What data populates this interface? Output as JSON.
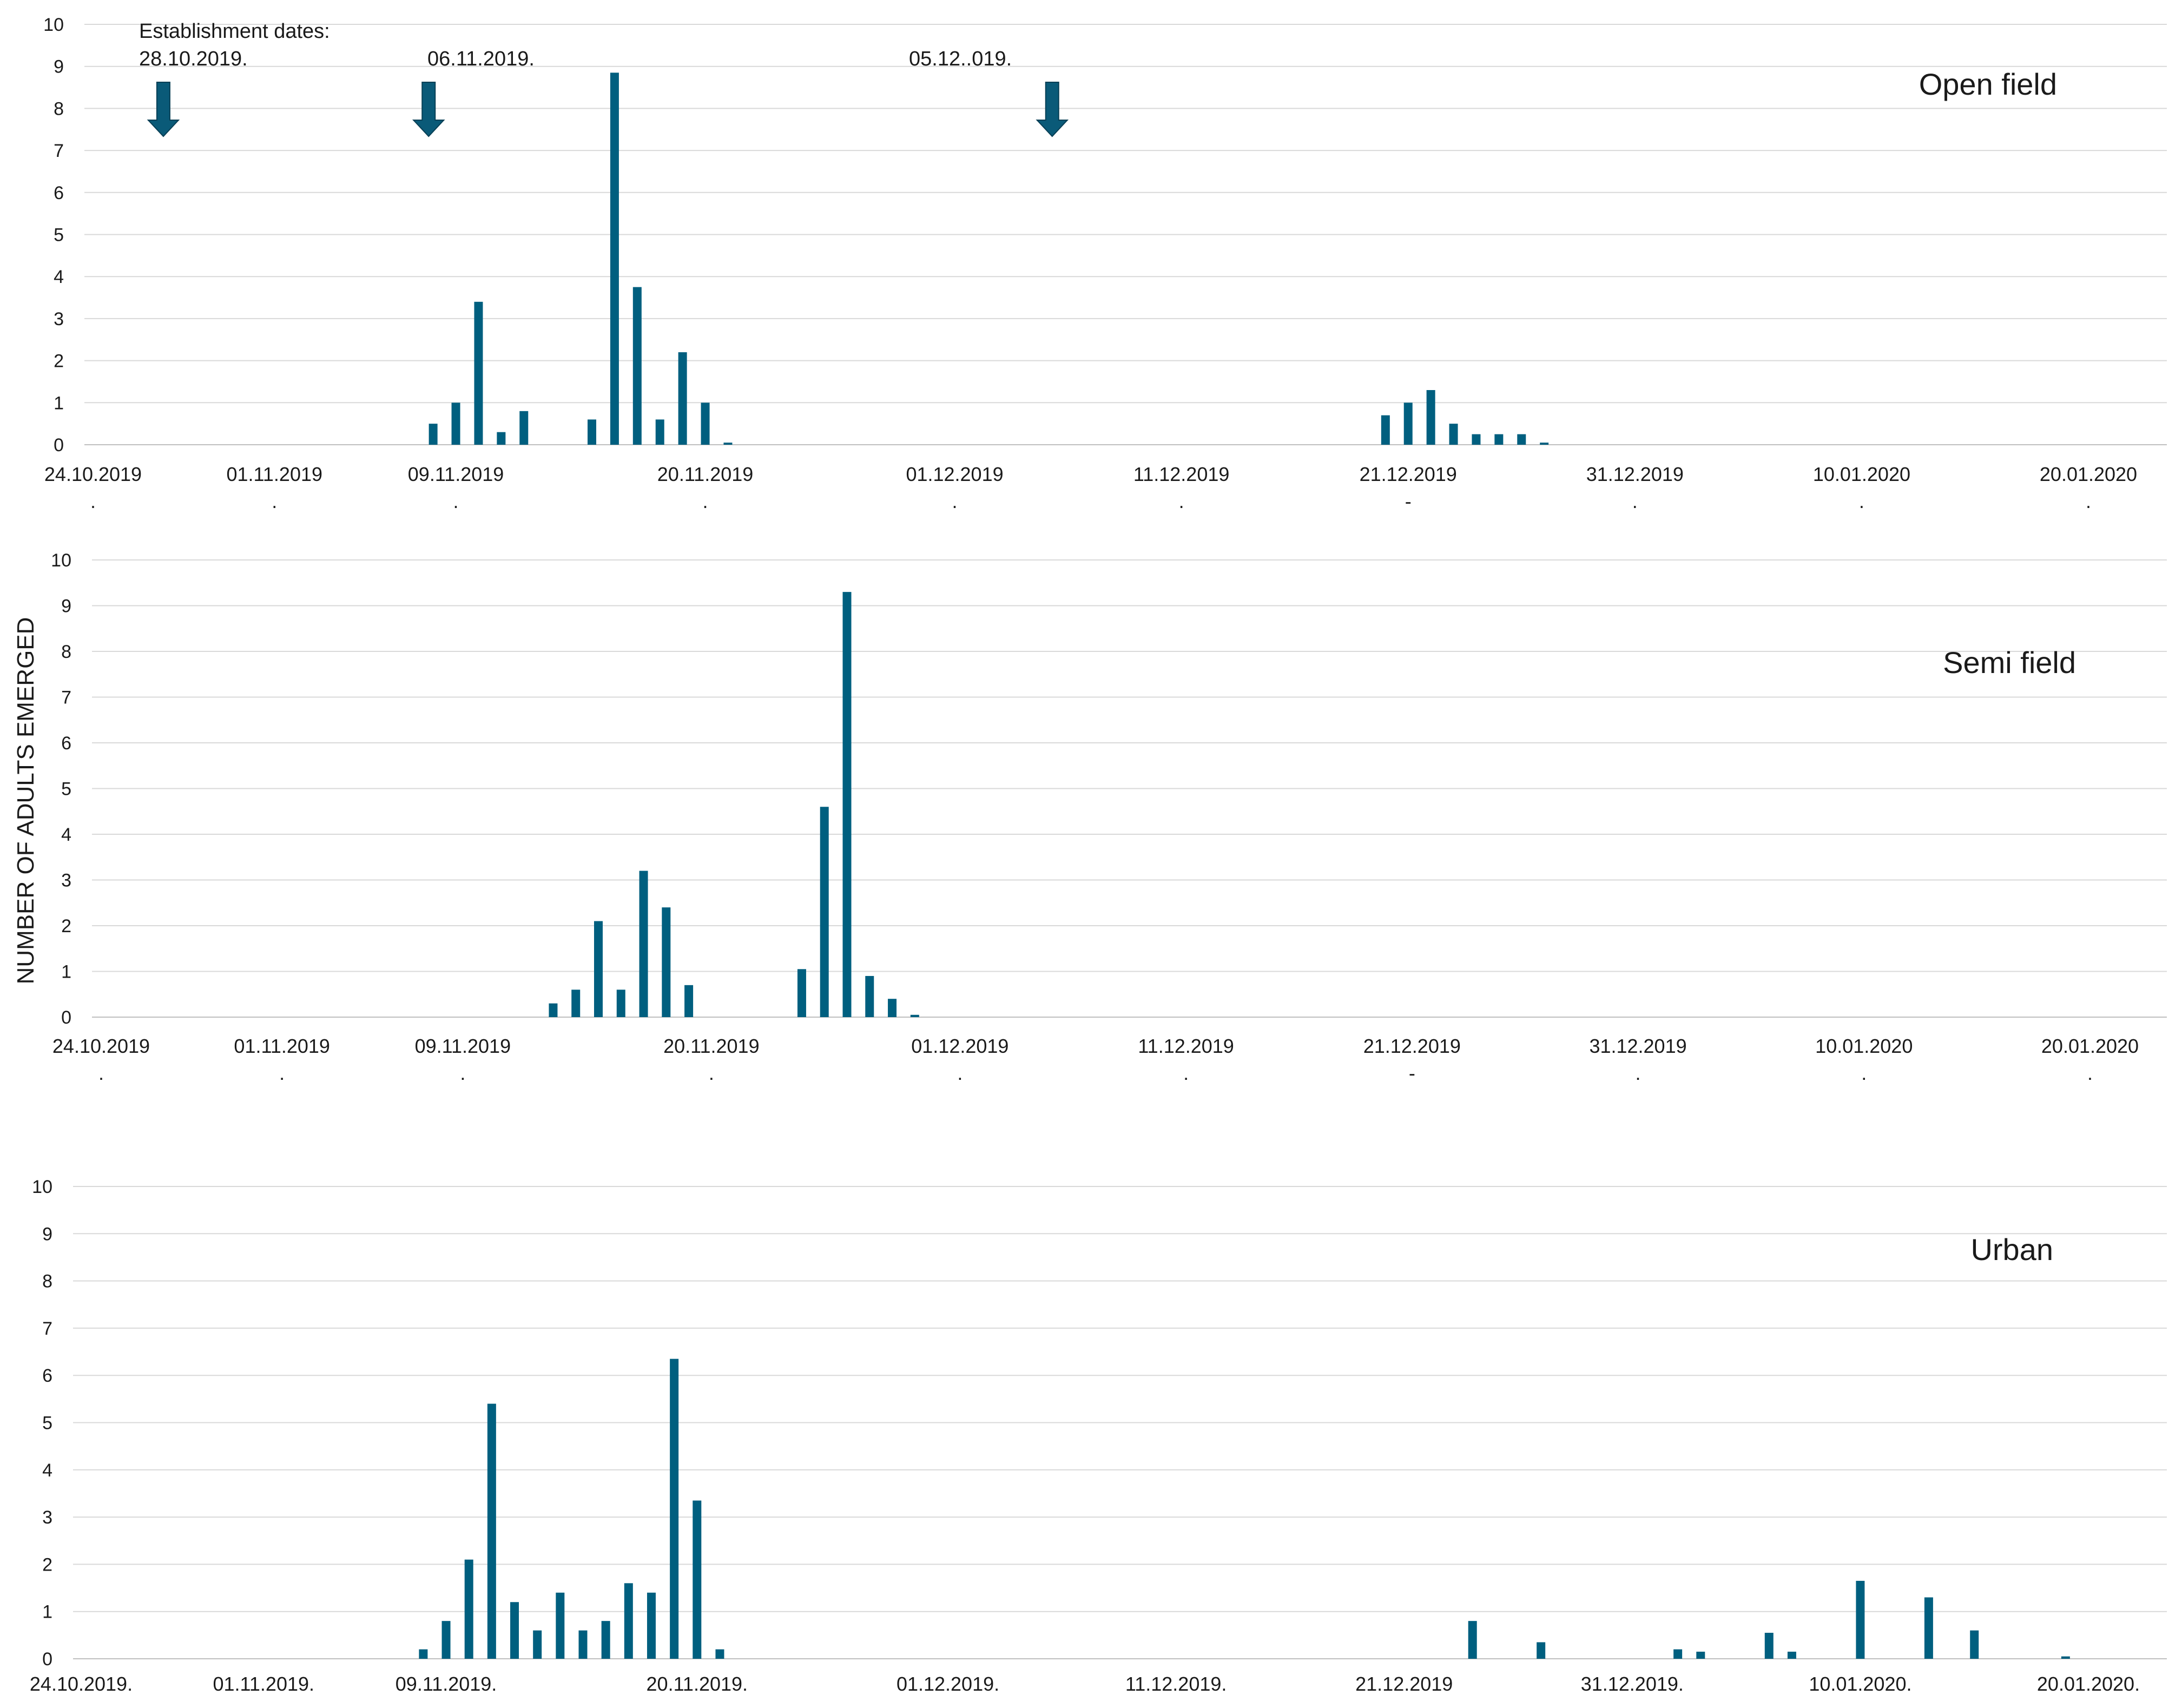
{
  "figure": {
    "ylabel": "NUMBER OF ADULTS EMERGED",
    "bar_color": "#005f7f",
    "arrow_color": "#0a5a78"
  },
  "chart_data": [
    {
      "type": "bar",
      "title": "Open field",
      "ylabel": "NUMBER OF ADULTS EMERGED",
      "ylim": [
        0,
        10
      ],
      "yticks": [
        "0",
        "1",
        "2",
        "3",
        "4",
        "5",
        "6",
        "7",
        "8",
        "9",
        "10"
      ],
      "x_start": "24.10.2019",
      "x_end": "20.01.2020",
      "xtick_labels": [
        "24.10.2019",
        "01.11.2019",
        "09.11.2019",
        "20.11.2019",
        "01.12.2019",
        "11.12.2019",
        "21.12.2019",
        "31.12.2019",
        "10.01.2020",
        "20.01.2020"
      ],
      "xtick_day_offsets": [
        0,
        8,
        16,
        27,
        38,
        48,
        58,
        68,
        78,
        88
      ],
      "xtick_marks": [
        ".",
        ".",
        ".",
        ".",
        ".",
        ".",
        "-",
        ".",
        ".",
        "."
      ],
      "annotations": {
        "header": "Establishment dates:",
        "dates": [
          "28.10.2019.",
          "06.11.2019.",
          "05.12..019."
        ],
        "arrow_day_offsets": [
          3.1,
          14.8,
          42.3
        ]
      },
      "bars": [
        {
          "day": 15,
          "value": 0.5
        },
        {
          "day": 16,
          "value": 1.0
        },
        {
          "day": 17,
          "value": 3.4
        },
        {
          "day": 18,
          "value": 0.3
        },
        {
          "day": 19,
          "value": 0.8
        },
        {
          "day": 22,
          "value": 0.6
        },
        {
          "day": 23,
          "value": 8.85
        },
        {
          "day": 24,
          "value": 3.75
        },
        {
          "day": 25,
          "value": 0.6
        },
        {
          "day": 26,
          "value": 2.2
        },
        {
          "day": 27,
          "value": 1.0
        },
        {
          "day": 28,
          "value": 0.05
        },
        {
          "day": 57,
          "value": 0.7
        },
        {
          "day": 58,
          "value": 1.0
        },
        {
          "day": 59,
          "value": 1.3
        },
        {
          "day": 60,
          "value": 0.5
        },
        {
          "day": 61,
          "value": 0.25
        },
        {
          "day": 62,
          "value": 0.25
        },
        {
          "day": 63,
          "value": 0.25
        },
        {
          "day": 64,
          "value": 0.05
        }
      ]
    },
    {
      "type": "bar",
      "title": "Semi field",
      "ylabel": "NUMBER OF ADULTS EMERGED",
      "ylim": [
        0,
        10
      ],
      "yticks": [
        "0",
        "1",
        "2",
        "3",
        "4",
        "5",
        "6",
        "7",
        "8",
        "9",
        "10"
      ],
      "x_start": "24.10.2019",
      "x_end": "20.01.2020",
      "xtick_labels": [
        "24.10.2019",
        "01.11.2019",
        "09.11.2019",
        "20.11.2019",
        "01.12.2019",
        "11.12.2019",
        "21.12.2019",
        "31.12.2019",
        "10.01.2020",
        "20.01.2020"
      ],
      "xtick_day_offsets": [
        0,
        8,
        16,
        27,
        38,
        48,
        58,
        68,
        78,
        88
      ],
      "xtick_marks": [
        ".",
        ".",
        ".",
        ".",
        ".",
        ".",
        "-",
        ".",
        ".",
        "."
      ],
      "bars": [
        {
          "day": 20,
          "value": 0.3
        },
        {
          "day": 21,
          "value": 0.6
        },
        {
          "day": 22,
          "value": 2.1
        },
        {
          "day": 23,
          "value": 0.6
        },
        {
          "day": 24,
          "value": 3.2
        },
        {
          "day": 25,
          "value": 2.4
        },
        {
          "day": 26,
          "value": 0.7
        },
        {
          "day": 31,
          "value": 1.05
        },
        {
          "day": 32,
          "value": 4.6
        },
        {
          "day": 33,
          "value": 9.3
        },
        {
          "day": 34,
          "value": 0.9
        },
        {
          "day": 35,
          "value": 0.4
        },
        {
          "day": 36,
          "value": 0.05
        }
      ]
    },
    {
      "type": "bar",
      "title": "Urban",
      "ylabel": "NUMBER OF ADULTS EMERGED",
      "ylim": [
        0,
        10
      ],
      "yticks": [
        "0",
        "1",
        "2",
        "3",
        "4",
        "5",
        "6",
        "7",
        "8",
        "9",
        "10"
      ],
      "x_start": "24.10.2019.",
      "x_end": "20.01.2020.",
      "xtick_labels": [
        "24.10.2019.",
        "01.11.2019.",
        "09.11.2019.",
        "20.11.2019.",
        "01.12.2019.",
        "11.12.2019.",
        "21.12.2019",
        "31.12.2019.",
        "10.01.2020.",
        "20.01.2020."
      ],
      "xtick_day_offsets": [
        0,
        8,
        16,
        27,
        38,
        48,
        58,
        68,
        78,
        88
      ],
      "xtick_marks": [
        "",
        "",
        "",
        "",
        "",
        "",
        "",
        "",
        "",
        ""
      ],
      "bars": [
        {
          "day": 15,
          "value": 0.2
        },
        {
          "day": 16,
          "value": 0.8
        },
        {
          "day": 17,
          "value": 2.1
        },
        {
          "day": 18,
          "value": 5.4
        },
        {
          "day": 19,
          "value": 1.2
        },
        {
          "day": 20,
          "value": 0.6
        },
        {
          "day": 21,
          "value": 1.4
        },
        {
          "day": 22,
          "value": 0.6
        },
        {
          "day": 23,
          "value": 0.8
        },
        {
          "day": 24,
          "value": 1.6
        },
        {
          "day": 25,
          "value": 1.4
        },
        {
          "day": 26,
          "value": 6.35
        },
        {
          "day": 27,
          "value": 3.35
        },
        {
          "day": 28,
          "value": 0.2
        },
        {
          "day": 61,
          "value": 0.8
        },
        {
          "day": 64,
          "value": 0.35
        },
        {
          "day": 70,
          "value": 0.2
        },
        {
          "day": 71,
          "value": 0.15
        },
        {
          "day": 74,
          "value": 0.55
        },
        {
          "day": 75,
          "value": 0.15
        },
        {
          "day": 78,
          "value": 1.65
        },
        {
          "day": 81,
          "value": 1.3
        },
        {
          "day": 83,
          "value": 0.6
        },
        {
          "day": 87,
          "value": 0.05
        }
      ]
    }
  ]
}
